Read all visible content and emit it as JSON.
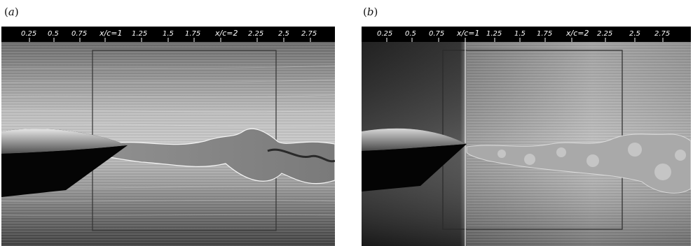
{
  "panels": [
    {
      "id": "a",
      "label_open": "(",
      "label_letter": "a",
      "label_close": ")",
      "scale_labels": [
        "0.25",
        "0.5",
        "0.75",
        "x/c=1",
        "1.25",
        "1.5",
        "1.75",
        "x/c=2",
        "2.25",
        "2.5",
        "2.75"
      ]
    },
    {
      "id": "b",
      "label_open": "(",
      "label_letter": "b",
      "label_close": ")",
      "scale_labels": [
        "0.25",
        "0.5",
        "0.75",
        "x/c=1",
        "1.25",
        "1.5",
        "1.75",
        "x/c=2",
        "2.25",
        "2.5",
        "2.75"
      ]
    }
  ],
  "colors": {
    "background": "#ffffff",
    "scale_bar": "#000000",
    "flow_light": "#d8d8d8",
    "flow_dark": "#4a4a4a"
  }
}
